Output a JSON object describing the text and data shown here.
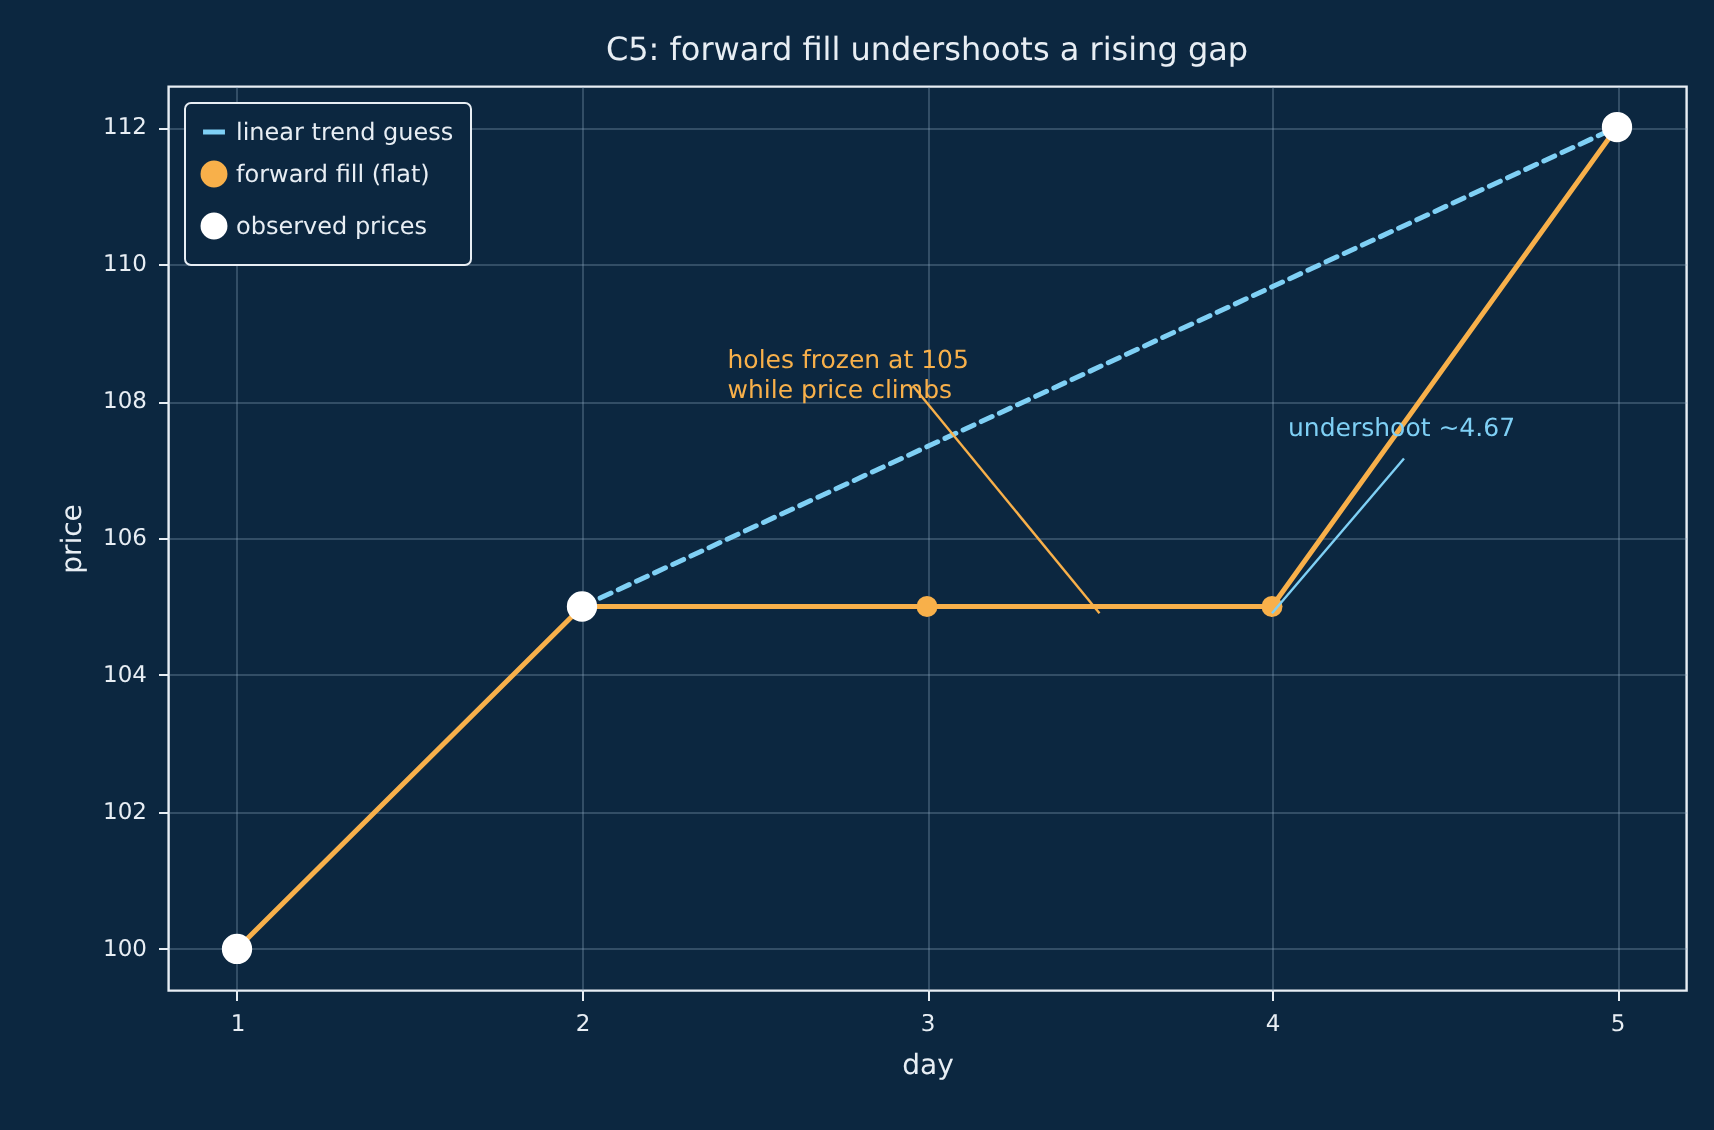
{
  "chart_data": {
    "type": "line",
    "title": "C5: forward fill undershoots a rising gap",
    "xlabel": "day",
    "ylabel": "price",
    "xlim": [
      0.8,
      5.2
    ],
    "xticks": [
      1,
      2,
      3,
      4,
      5
    ],
    "ylim": [
      99.4,
      112.6
    ],
    "yticks": [
      100,
      102,
      104,
      106,
      108,
      110,
      112
    ],
    "grid": true,
    "legend": "top left",
    "series": [
      {
        "name": "linear trend guess",
        "color": "#7fd0f5",
        "line_style": "dashed",
        "marker": "none",
        "x": [
          2,
          5
        ],
        "values": [
          105,
          112
        ]
      },
      {
        "name": "forward fill (flat)",
        "color": "#f8b04a",
        "line_style": "solid",
        "marker": "circle",
        "x": [
          1,
          2,
          3,
          4,
          5
        ],
        "values": [
          100,
          105,
          105,
          105,
          112
        ]
      },
      {
        "name": "observed prices",
        "type": "scatter",
        "color": "#ffffff",
        "marker": "circle",
        "x": [
          1,
          2,
          5
        ],
        "values": [
          100,
          105,
          112
        ]
      }
    ],
    "annotations": [
      {
        "text": "holes frozen at 105\nwhile price climbs",
        "x": 3.5,
        "y": 105
      },
      {
        "text": "undershoot ~4.67",
        "x": 4,
        "y": 105
      }
    ]
  }
}
